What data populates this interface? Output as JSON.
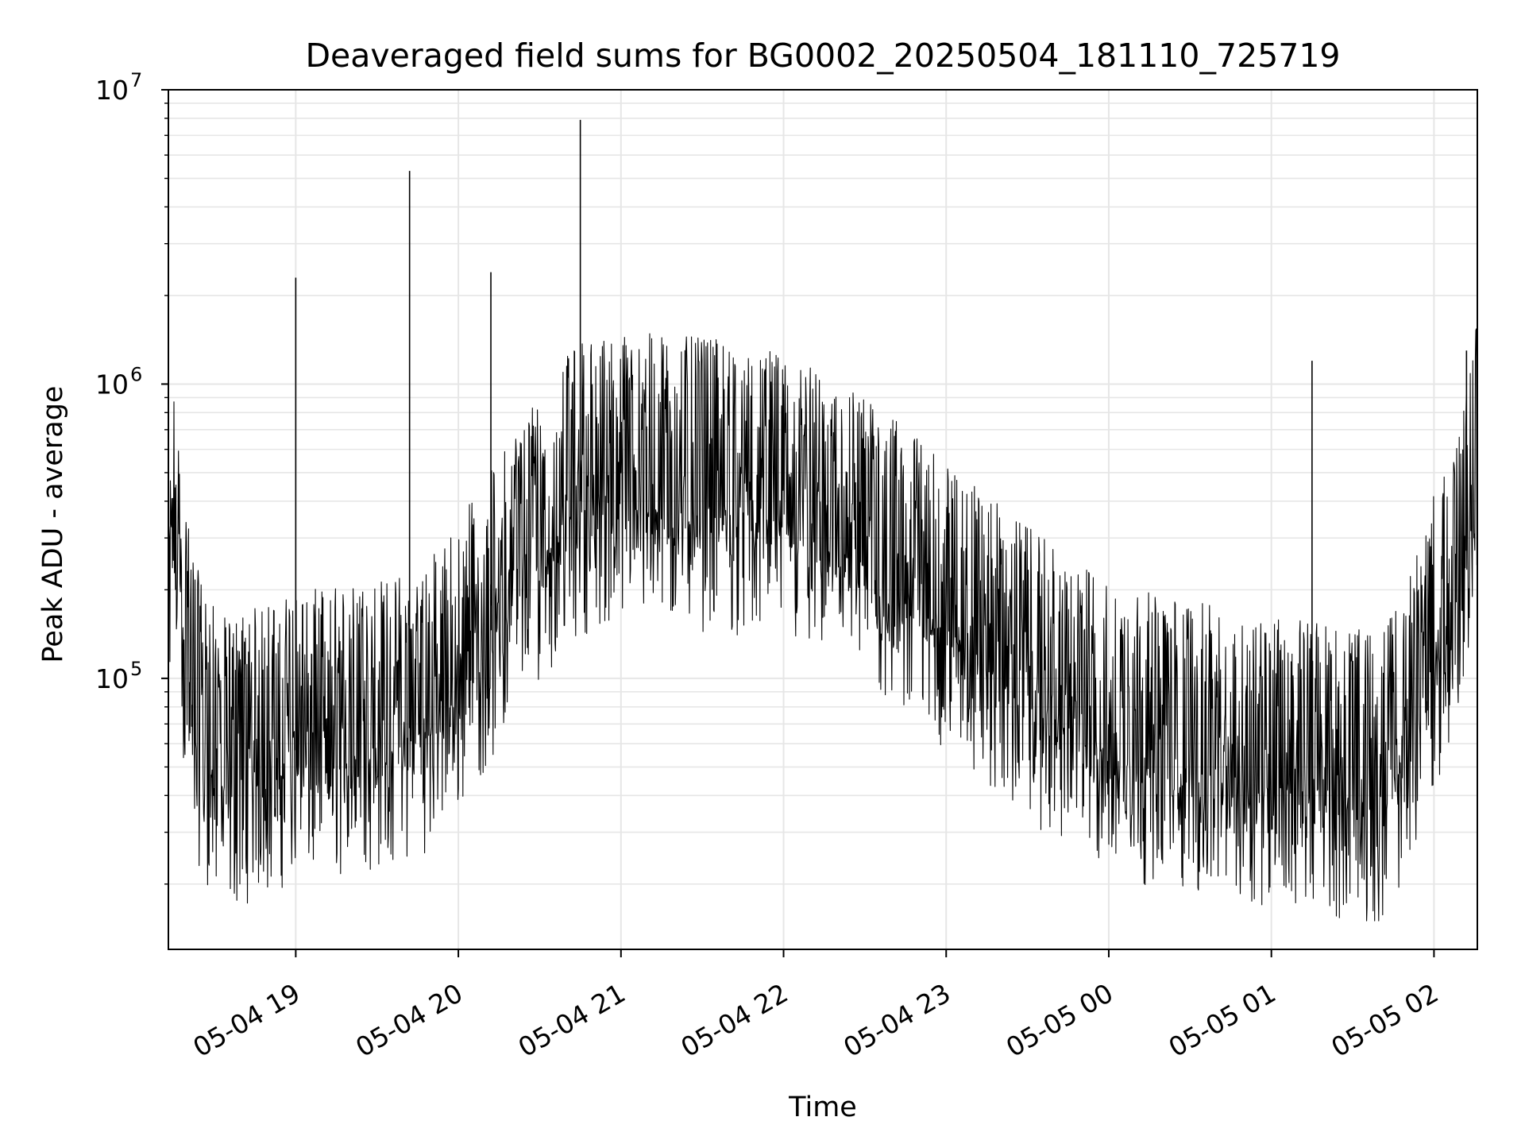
{
  "chart_data": {
    "type": "line",
    "title": "Deaveraged field sums for BG0002_20250504_181110_725719",
    "xlabel": "Time",
    "ylabel": "Peak ADU - average",
    "yscale": "log",
    "xlim": [
      "2025-05-04 18:13",
      "2025-05-05 02:16"
    ],
    "ylim": [
      12000,
      10000000
    ],
    "grid": true,
    "line_color": "#000000",
    "grid_color": "#e6e6e6",
    "x_ticks": [
      {
        "t": "2025-05-04 19:00",
        "label": "05-04 19"
      },
      {
        "t": "2025-05-04 20:00",
        "label": "05-04 20"
      },
      {
        "t": "2025-05-04 21:00",
        "label": "05-04 21"
      },
      {
        "t": "2025-05-04 22:00",
        "label": "05-04 22"
      },
      {
        "t": "2025-05-04 23:00",
        "label": "05-04 23"
      },
      {
        "t": "2025-05-05 00:00",
        "label": "05-05 00"
      },
      {
        "t": "2025-05-05 01:00",
        "label": "05-05 01"
      },
      {
        "t": "2025-05-05 02:00",
        "label": "05-05 02"
      }
    ],
    "y_ticks": [
      {
        "value": 100000,
        "base": "10",
        "exp": "5"
      },
      {
        "value": 1000000,
        "base": "10",
        "exp": "6"
      },
      {
        "value": 10000000,
        "base": "10",
        "exp": "7"
      }
    ],
    "series": [
      {
        "points": [
          [
            "2025-05-04 18:13",
            80000
          ],
          [
            "2025-05-04 18:15",
            450000
          ],
          [
            "2025-05-04 18:17",
            160000
          ],
          [
            "2025-05-04 18:20",
            100000
          ],
          [
            "2025-05-04 18:23",
            70000
          ],
          [
            "2025-05-04 18:26",
            60000
          ],
          [
            "2025-05-04 18:30",
            50000
          ],
          [
            "2025-05-04 18:35",
            45000
          ],
          [
            "2025-05-04 18:40",
            48000
          ],
          [
            "2025-05-04 18:45",
            50000
          ],
          [
            "2025-05-04 18:50",
            52000
          ],
          [
            "2025-05-04 18:55",
            55000
          ],
          [
            "2025-05-04 19:00",
            57000
          ],
          [
            "2025-05-04 19:10",
            58000
          ],
          [
            "2025-05-04 19:20",
            60000
          ],
          [
            "2025-05-04 19:30",
            62000
          ],
          [
            "2025-05-04 19:40",
            66000
          ],
          [
            "2025-05-04 19:50",
            75000
          ],
          [
            "2025-05-04 20:00",
            100000
          ],
          [
            "2025-05-04 20:15",
            160000
          ],
          [
            "2025-05-04 20:30",
            280000
          ],
          [
            "2025-05-04 20:45",
            400000
          ],
          [
            "2025-05-04 21:00",
            430000
          ],
          [
            "2025-05-04 21:20",
            420000
          ],
          [
            "2025-05-04 21:40",
            400000
          ],
          [
            "2025-05-04 22:00",
            360000
          ],
          [
            "2025-05-04 22:20",
            300000
          ],
          [
            "2025-05-04 22:40",
            220000
          ],
          [
            "2025-05-04 23:00",
            160000
          ],
          [
            "2025-05-04 23:20",
            110000
          ],
          [
            "2025-05-04 23:40",
            80000
          ],
          [
            "2025-05-05 00:00",
            60000
          ],
          [
            "2025-05-05 00:20",
            55000
          ],
          [
            "2025-05-05 00:40",
            50000
          ],
          [
            "2025-05-05 01:00",
            48000
          ],
          [
            "2025-05-05 01:20",
            45000
          ],
          [
            "2025-05-05 01:40",
            40000
          ],
          [
            "2025-05-05 01:50",
            60000
          ],
          [
            "2025-05-05 02:00",
            120000
          ],
          [
            "2025-05-05 02:10",
            200000
          ],
          [
            "2025-05-05 02:16",
            500000
          ]
        ]
      }
    ],
    "spikes": [
      {
        "t": "2025-05-04 19:00",
        "value": 2300000
      },
      {
        "t": "2025-05-04 19:42",
        "value": 5300000
      },
      {
        "t": "2025-05-04 20:12",
        "value": 2400000
      },
      {
        "t": "2025-05-04 20:45",
        "value": 7900000
      },
      {
        "t": "2025-05-05 01:15",
        "value": 1200000
      },
      {
        "t": "2025-05-05 02:12",
        "value": 1300000
      }
    ]
  }
}
